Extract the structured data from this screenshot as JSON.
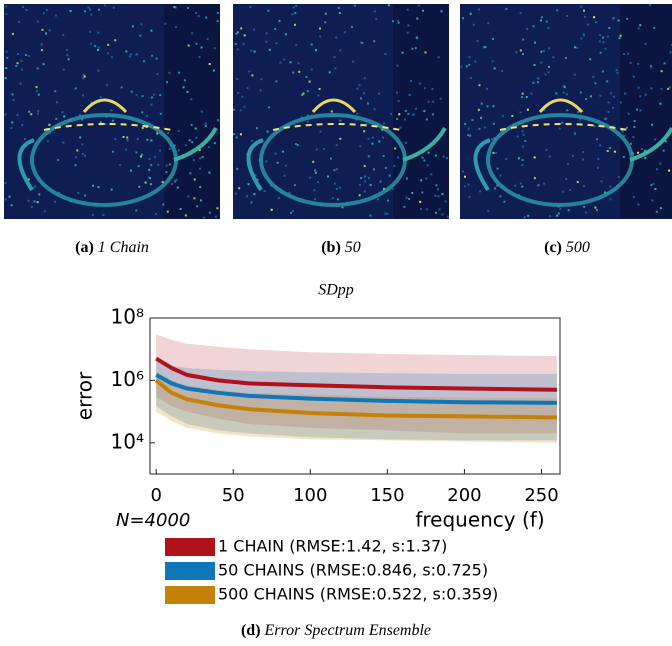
{
  "panels": [
    {
      "label": "(a)",
      "text": "1 Chain"
    },
    {
      "label": "(b)",
      "text": "50"
    },
    {
      "label": "(c)",
      "text": "500"
    }
  ],
  "figure_caption": {
    "label": "(d)",
    "text": "Error Spectrum Ensemble"
  },
  "chart_data": {
    "type": "line",
    "title": "SDpp",
    "y_label": "error",
    "x_label": "frequency (f)",
    "annotation": "N=4000",
    "log_y": true,
    "x": [
      0,
      10,
      20,
      40,
      60,
      100,
      150,
      200,
      260
    ],
    "xlim": [
      -4,
      262
    ],
    "xticks": [
      0,
      50,
      100,
      150,
      200,
      250
    ],
    "ylim": [
      1000,
      100000000
    ],
    "yticks": [
      {
        "value": 10000,
        "label": "10⁴"
      },
      {
        "value": 1000000,
        "label": "10⁶"
      },
      {
        "value": 100000000,
        "label": "10⁸"
      }
    ],
    "series": [
      {
        "name": "1 CHAIN (RMSE:1.42, s:1.37)",
        "color": "#b0111b",
        "values": [
          5000000,
          2500000,
          1500000,
          1000000,
          800000,
          700000,
          600000,
          550000,
          500000
        ],
        "upper": [
          30000000,
          20000000,
          15000000,
          12000000,
          10000000,
          8000000,
          7000000,
          6500000,
          6000000
        ],
        "lower": [
          300000,
          150000,
          100000,
          60000,
          40000,
          30000,
          25000,
          20000,
          20000
        ]
      },
      {
        "name": "50 CHAINS (RMSE:0.846, s:0.725)",
        "color": "#0f76b8",
        "values": [
          1500000,
          800000,
          550000,
          400000,
          320000,
          260000,
          220000,
          200000,
          190000
        ],
        "upper": [
          4000000,
          3000000,
          2500000,
          2200000,
          2000000,
          1800000,
          1700000,
          1600000,
          1600000
        ],
        "lower": [
          150000,
          70000,
          40000,
          25000,
          20000,
          15000,
          13000,
          12000,
          12000
        ]
      },
      {
        "name": "500 CHAINS (RMSE:0.522, s:0.359)",
        "color": "#c4810a",
        "values": [
          1000000,
          400000,
          250000,
          160000,
          120000,
          90000,
          75000,
          70000,
          65000
        ],
        "upper": [
          2000000,
          1000000,
          700000,
          500000,
          400000,
          350000,
          300000,
          280000,
          270000
        ],
        "lower": [
          100000,
          50000,
          30000,
          20000,
          16000,
          13000,
          12000,
          11000,
          10000
        ]
      }
    ]
  }
}
